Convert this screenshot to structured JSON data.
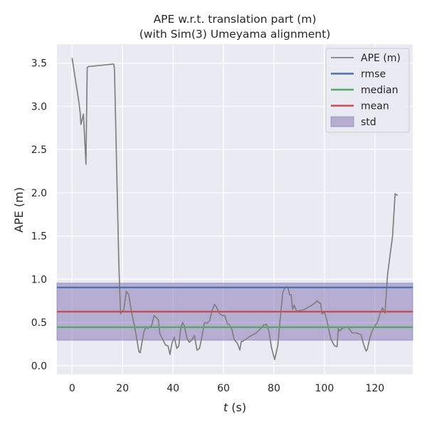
{
  "chart_data": {
    "type": "line",
    "title": "APE w.r.t. translation part (m)",
    "subtitle": "(with Sim(3) Umeyama alignment)",
    "xlabel_var": "t",
    "xlabel_unit": " (s)",
    "ylabel": "APE (m)",
    "xlim": [
      -6,
      135
    ],
    "ylim": [
      -0.1,
      3.72
    ],
    "xticks": [
      0,
      20,
      40,
      60,
      80,
      100,
      120
    ],
    "yticks": [
      0.0,
      0.5,
      1.0,
      1.5,
      2.0,
      2.5,
      3.0,
      3.5
    ],
    "ytick_labels": [
      "0.0",
      "0.5",
      "1.0",
      "1.5",
      "2.0",
      "2.5",
      "3.0",
      "3.5"
    ],
    "legend": [
      "APE (m)",
      "rmse",
      "median",
      "mean",
      "std"
    ],
    "legend_position": "top-right",
    "colors": {
      "background": "#eaeaf2",
      "grid": "#ffffff",
      "ape": "#808080",
      "rmse": "#4c72b0",
      "median": "#55a868",
      "mean": "#c44e52",
      "std": "#8172b2"
    },
    "stats": {
      "rmse": 0.905,
      "median": 0.445,
      "mean": 0.625,
      "std": 0.33
    },
    "series": [
      {
        "name": "APE (m)",
        "x": [
          0.0,
          2.7,
          3.2,
          3.5,
          4.5,
          5.5,
          6.0,
          6.5,
          16.5,
          16.8,
          18.5,
          19.2,
          20.5,
          21.5,
          22.5,
          23.5,
          25,
          26.5,
          27,
          28.5,
          29.5,
          30,
          31.5,
          32.5,
          33.3,
          34.2,
          34.8,
          36,
          37,
          38,
          38.8,
          39.5,
          40.5,
          41.5,
          42.3,
          43,
          43.8,
          44.5,
          45.5,
          46.5,
          47.5,
          48.5,
          49.5,
          50.5,
          51.2,
          52.5,
          53.5,
          54.5,
          55.5,
          56.5,
          57.5,
          58.5,
          59.5,
          60.5,
          61.5,
          62.5,
          63.3,
          64.3,
          65.5,
          66.5,
          67,
          67.5,
          68.5,
          70,
          73,
          76,
          77,
          78,
          79,
          80.3,
          81.5,
          82.5,
          83.5,
          84.5,
          85.5,
          86.2,
          86.8,
          87.4,
          88,
          89,
          92,
          95,
          96.5,
          97,
          97.8,
          98.5,
          99,
          100,
          101,
          102.5,
          104,
          105,
          105.5,
          106,
          107,
          108,
          109,
          110,
          111,
          112.5,
          113.5,
          114.5,
          115.5,
          116.5,
          117,
          118,
          119,
          120,
          121,
          122,
          123,
          124,
          125,
          126,
          127,
          128,
          129
        ],
        "y": [
          3.56,
          3.05,
          2.93,
          2.79,
          2.91,
          2.33,
          3.45,
          3.46,
          3.49,
          3.43,
          1.2,
          0.6,
          0.65,
          0.86,
          0.82,
          0.63,
          0.42,
          0.16,
          0.15,
          0.4,
          0.45,
          0.43,
          0.46,
          0.58,
          0.56,
          0.53,
          0.37,
          0.3,
          0.24,
          0.23,
          0.13,
          0.25,
          0.33,
          0.2,
          0.23,
          0.42,
          0.5,
          0.46,
          0.32,
          0.27,
          0.3,
          0.35,
          0.18,
          0.2,
          0.3,
          0.5,
          0.49,
          0.52,
          0.64,
          0.71,
          0.66,
          0.6,
          0.58,
          0.58,
          0.49,
          0.47,
          0.42,
          0.3,
          0.26,
          0.18,
          0.28,
          0.28,
          0.3,
          0.33,
          0.38,
          0.47,
          0.48,
          0.4,
          0.21,
          0.07,
          0.23,
          0.55,
          0.85,
          0.91,
          0.91,
          0.82,
          0.82,
          0.65,
          0.7,
          0.63,
          0.65,
          0.7,
          0.73,
          0.75,
          0.73,
          0.72,
          0.6,
          0.62,
          0.52,
          0.31,
          0.23,
          0.22,
          0.43,
          0.4,
          0.43,
          0.44,
          0.45,
          0.42,
          0.38,
          0.38,
          0.37,
          0.36,
          0.25,
          0.17,
          0.19,
          0.32,
          0.41,
          0.46,
          0.5,
          0.6,
          0.67,
          0.61,
          1.05,
          1.28,
          1.5,
          1.99,
          1.97
        ]
      }
    ]
  }
}
